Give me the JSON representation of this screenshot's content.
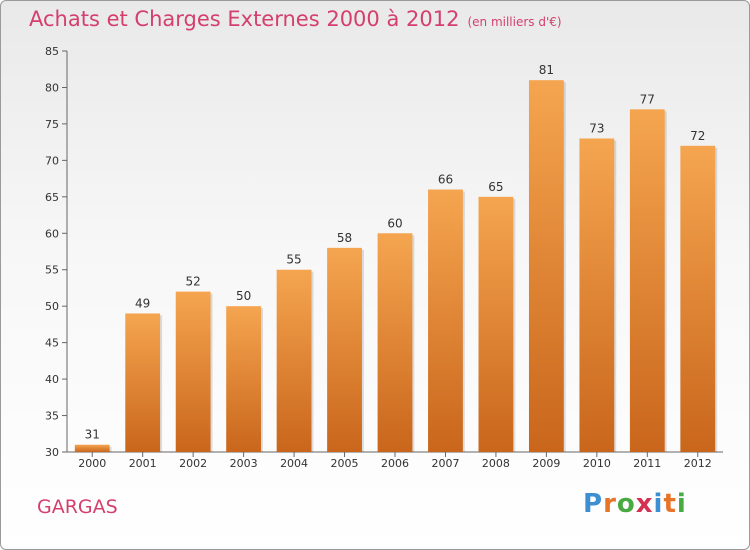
{
  "title": "Achats et Charges Externes 2000 à 2012",
  "subtitle": "(en milliers d'€)",
  "location": "GARGAS",
  "logo": {
    "letters": [
      "P",
      "r",
      "o",
      "x",
      "i",
      "t",
      "i"
    ],
    "colors": [
      "#3d8fd1",
      "#e8742a",
      "#49a942",
      "#d4304f",
      "#3d8fd1",
      "#e8742a",
      "#49a942"
    ]
  },
  "colors": {
    "bar_top": "#f5a54f",
    "bar_bottom": "#c9661c",
    "title": "#d43f6e"
  },
  "chart_data": {
    "type": "bar",
    "categories": [
      "2000",
      "2001",
      "2002",
      "2003",
      "2004",
      "2005",
      "2006",
      "2007",
      "2008",
      "2009",
      "2010",
      "2011",
      "2012"
    ],
    "values": [
      31,
      49,
      52,
      50,
      55,
      58,
      60,
      66,
      65,
      81,
      73,
      77,
      72
    ],
    "title": "Achats et Charges Externes 2000 à 2012",
    "ylim": [
      30,
      85
    ],
    "yticks": [
      30,
      35,
      40,
      45,
      50,
      55,
      60,
      65,
      70,
      75,
      80,
      85
    ],
    "grid": false,
    "data_labels": true
  }
}
